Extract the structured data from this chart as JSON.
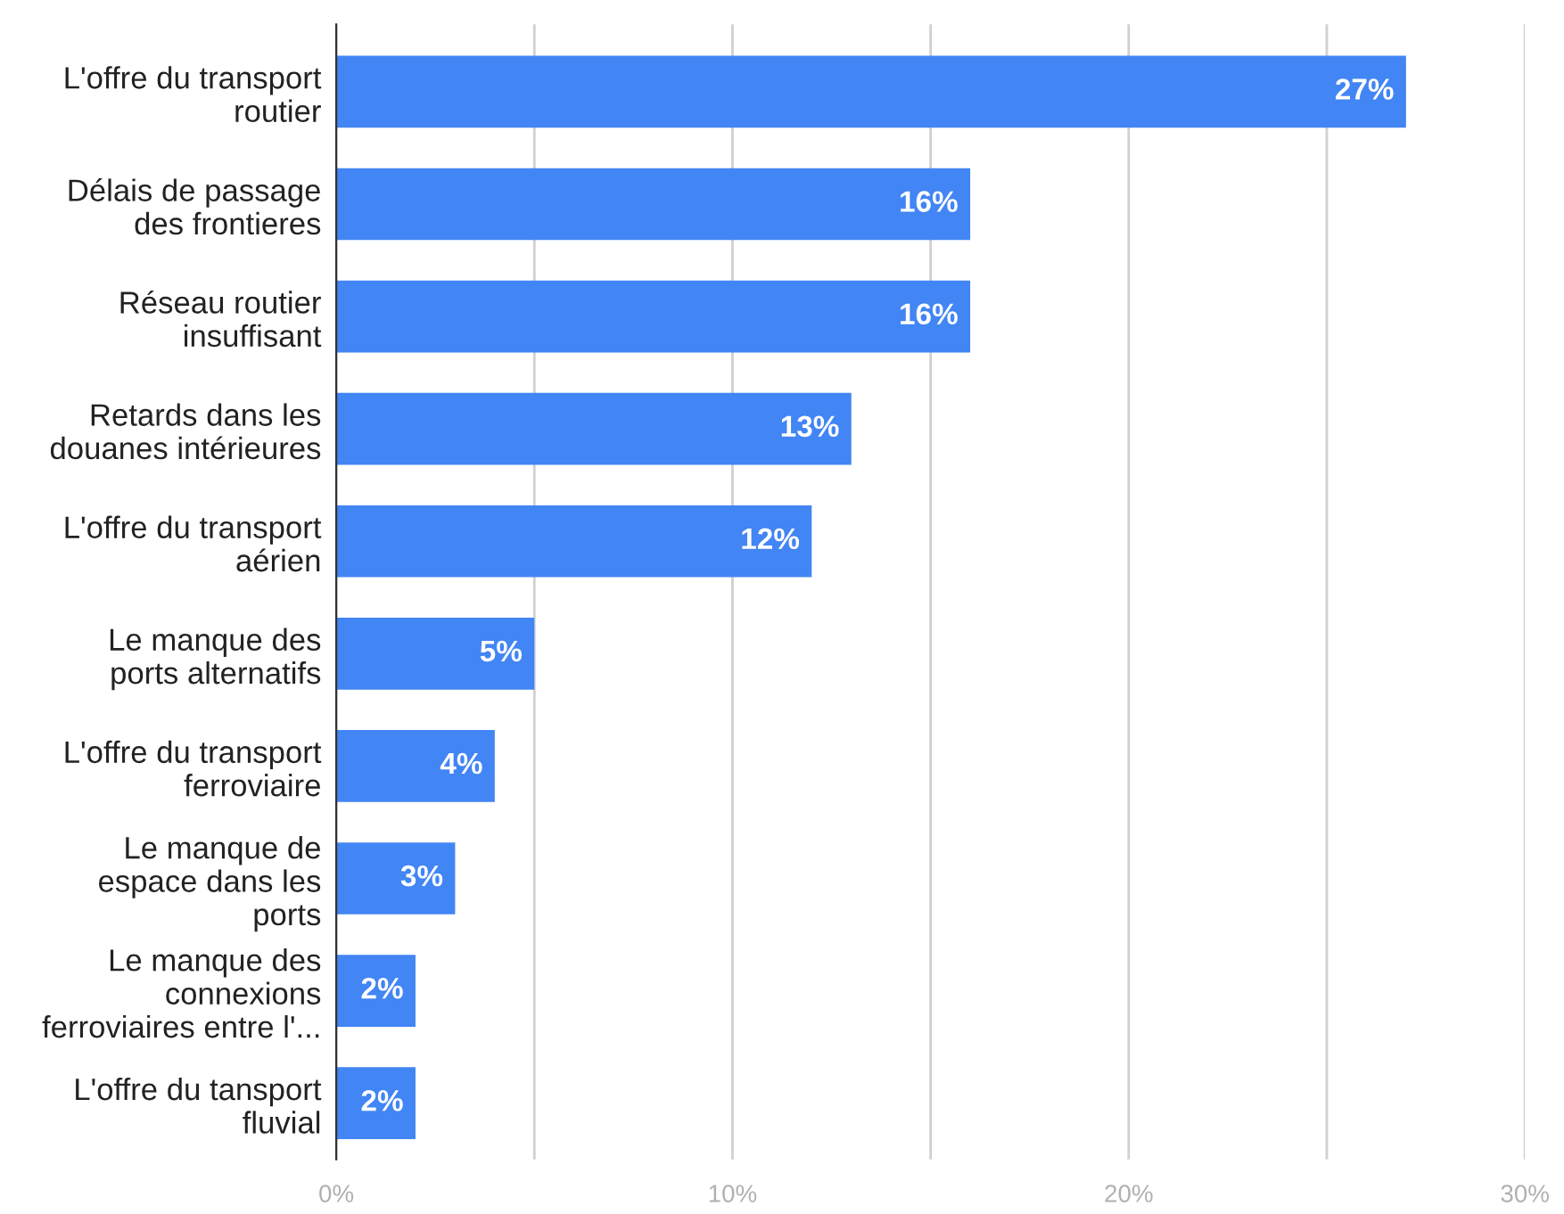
{
  "chart_data": {
    "type": "bar",
    "orientation": "horizontal",
    "categories": [
      "L'offre du transport\nroutier",
      "Délais de passage\ndes frontieres",
      "Réseau routier\ninsuffisant",
      "Retards dans les\ndouanes intérieures",
      "L'offre du transport\naérien",
      "Le manque des\nports alternatifs",
      "L'offre du transport\nferroviaire",
      "Le manque de\nespace dans les\nports",
      "Le manque des\nconnexions\nferroviaires entre l'...",
      "L'offre du tansport\nfluvial"
    ],
    "values": [
      27,
      16,
      16,
      13,
      12,
      5,
      4,
      3,
      2,
      2
    ],
    "value_labels": [
      "27%",
      "16%",
      "16%",
      "13%",
      "12%",
      "5%",
      "4%",
      "3%",
      "2%",
      "2%"
    ],
    "color": "#4285f4",
    "xlim": [
      0,
      30
    ],
    "xticks": [
      {
        "value": 0,
        "label": "0%"
      },
      {
        "value": 5,
        "label": null
      },
      {
        "value": 10,
        "label": "10%"
      },
      {
        "value": 15,
        "label": null
      },
      {
        "value": 20,
        "label": "20%"
      },
      {
        "value": 25,
        "label": null
      },
      {
        "value": 30,
        "label": "30%"
      }
    ],
    "grid": "x"
  }
}
